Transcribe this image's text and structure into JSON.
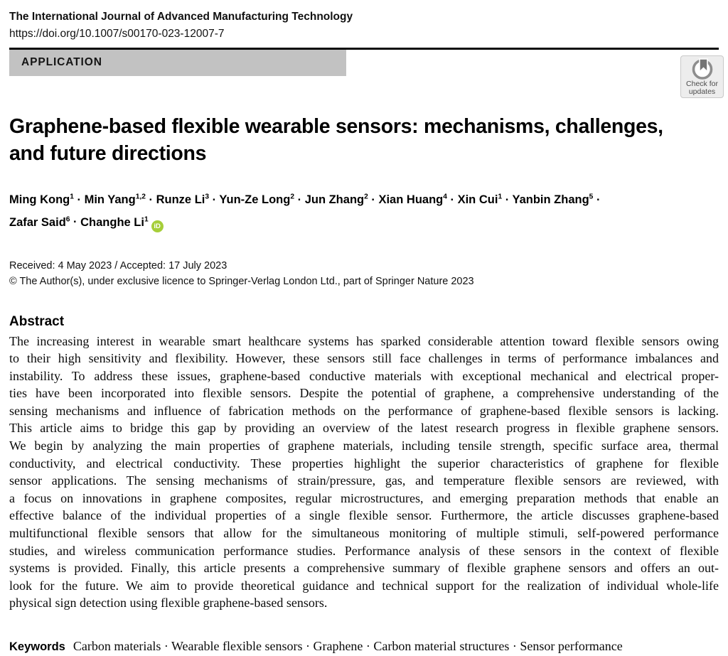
{
  "header": {
    "journal": "The International Journal of Advanced Manufacturing Technology",
    "doi": "https://doi.org/10.1007/s00170-023-12007-7",
    "article_type": "APPLICATION",
    "check_updates": {
      "line1": "Check for",
      "line2": "updates"
    }
  },
  "title_lines": [
    "Graphene-based flexible wearable sensors: mechanisms, challenges,",
    "and future directions"
  ],
  "authors": [
    {
      "name": "Ming Kong",
      "sup": "1"
    },
    {
      "name": "Min Yang",
      "sup": "1,2"
    },
    {
      "name": "Runze Li",
      "sup": "3"
    },
    {
      "name": "Yun-Ze Long",
      "sup": "2"
    },
    {
      "name": "Jun Zhang",
      "sup": "2"
    },
    {
      "name": "Xian Huang",
      "sup": "4"
    },
    {
      "name": "Xin Cui",
      "sup": "1"
    },
    {
      "name": "Yanbin Zhang",
      "sup": "5",
      "line_break_after": true
    },
    {
      "name": "Zafar Said",
      "sup": "6"
    },
    {
      "name": "Changhe Li",
      "sup": "1",
      "orcid": true
    }
  ],
  "author_separator": "·",
  "orcid_label": "iD",
  "dates": "Received: 4 May 2023 / Accepted: 17 July 2023",
  "copyright": "© The Author(s), under exclusive licence to Springer-Verlag London Ltd., part of Springer Nature 2023",
  "abstract": {
    "heading": "Abstract",
    "lines": [
      "The increasing interest in wearable smart healthcare systems has sparked considerable attention toward flexible sensors owing",
      "to their high sensitivity and flexibility. However, these sensors still face challenges in terms of performance imbalances and",
      "instability. To address these issues, graphene-based conductive materials with exceptional mechanical and electrical proper-",
      "ties have been incorporated into flexible sensors. Despite the potential of graphene, a comprehensive understanding of the",
      "sensing mechanisms and influence of fabrication methods on the performance of graphene-based flexible sensors is lacking.",
      "This article aims to bridge this gap by providing an overview of the latest research progress in flexible graphene sensors.",
      "We begin by analyzing the main properties of graphene materials, including tensile strength, specific surface area, thermal",
      "conductivity, and electrical conductivity. These properties highlight the superior characteristics of graphene for flexible",
      "sensor applications. The sensing mechanisms of strain/pressure, gas, and temperature flexible sensors are reviewed, with",
      "a focus on innovations in graphene composites, regular microstructures, and emerging preparation methods that enable an",
      "effective balance of the individual properties of a single flexible sensor. Furthermore, the article discusses graphene-based",
      "multifunctional flexible sensors that allow for the simultaneous monitoring of multiple stimuli, self-powered performance",
      "studies, and wireless communication performance studies. Performance analysis of these sensors in the context of flexible",
      "systems is provided. Finally, this article presents a comprehensive summary of flexible graphene sensors and offers an out-",
      "look for the future. We aim to provide theoretical guidance and technical support for the realization of individual whole-life",
      "physical sign detection using flexible graphene-based sensors."
    ]
  },
  "keywords": {
    "heading": "Keywords",
    "items": [
      "Carbon materials",
      "Wearable flexible sensors",
      "Graphene",
      "Carbon material structures",
      "Sensor performance"
    ],
    "separator": "·"
  },
  "colors": {
    "banner_bg": "#c2c2c2",
    "badge_bg": "#ededed",
    "badge_border": "#c9c9c9",
    "badge_icon_gray": "#8e8e8e",
    "badge_bookmark_gray": "#747474",
    "orcid_green": "#a6ce39",
    "text": "#000000"
  }
}
